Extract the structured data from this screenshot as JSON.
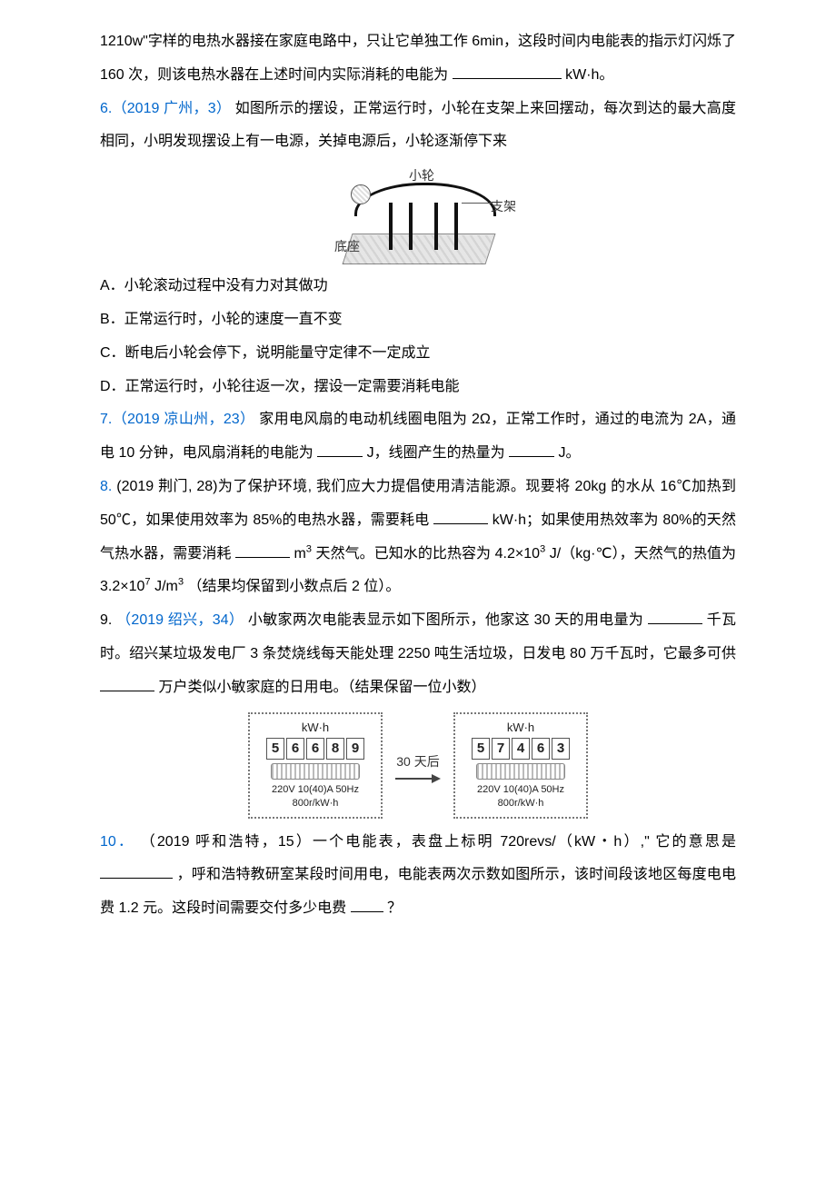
{
  "p1a": "1210w\"字样的电热水器接在家庭电路中，只让它单独工作 6min，这段时间内电能表的指示灯闪烁了 160 次，则该电热水器在上述时间内实际消耗的电能为",
  "p1b": "kW·h。",
  "q6_tag": "6.（2019 广州，3）",
  "q6_body": "如图所示的摆设，正常运行时，小轮在支架上来回摆动，每次到达的最大高度相同，小明发现摆设上有一电源，关掉电源后，小轮逐渐停下来",
  "fig1": {
    "wheel": "小轮",
    "support": "支架",
    "base": "底座"
  },
  "optA": "A．小轮滚动过程中没有力对其做功",
  "optB": "B．正常运行时，小轮的速度一直不变",
  "optC": "C．断电后小轮会停下，说明能量守定律不一定成立",
  "optD": "D．正常运行时，小轮往返一次，摆设一定需要消耗电能",
  "q7_tag": "7.（2019 凉山州，23）",
  "q7_a": "家用电风扇的电动机线圈电阻为 2Ω，正常工作时，通过的电流为 2A，通电 10 分钟，电风扇消耗的电能为",
  "q7_b": "J，线圈产生的热量为",
  "q7_c": "J。",
  "q8_tag": "8.",
  "q8_head": "(2019 荆门, 28)为了保护环境, 我们应大力提倡使用清洁能源。现要将 20kg 的水从 16℃加热到 50℃，如果使用效率为 85%的电热水器，需要耗电",
  "q8_mid": "kW·h；如果使用热效率为 80%的天然气热水器，需要消耗",
  "q8_tailA": "m",
  "q8_tailA2": " 天然气。已知水的比热容为 4.2×10",
  "q8_tailA3": "J/（kg·℃），天然气的热值为 3.2×10",
  "q8_tailA4": "J/m",
  "q8_tailA5": "（结果均保留到小数点后 2 位）。",
  "q9_tag": "9.（2019 绍兴，34）",
  "q9_a": "小敏家两次电能表显示如下图所示，他家这 30 天的用电量为",
  "q9_b": "千瓦时。绍兴某垃圾发电厂 3 条焚烧线每天能处理 2250 吨生活垃圾，日发电 80 万千瓦时，它最多可供",
  "q9_c": "万户类似小敏家庭的日用电。（结果保留一位小数）",
  "fig2": {
    "unit": "kW·h",
    "left_digits": [
      "5",
      "6",
      "6",
      "8",
      "9"
    ],
    "right_digits": [
      "5",
      "7",
      "4",
      "6",
      "3"
    ],
    "arrow": "30 天后",
    "spec1": "220V 10(40)A 50Hz",
    "spec2": "800r/kW·h"
  },
  "q10_tag": "10．",
  "q10_head": "（2019 呼和浩特，15）一个电能表，表盘上标明 720revs/（kW・h）,\" 它的意思是",
  "q10_mid": "，呼和浩特教研室某段时间用电，电能表两次示数如图所示，该时间段该地区每度电电费 1.2 元。这段时间需要交付多少电费",
  "q10_tail": " ？"
}
